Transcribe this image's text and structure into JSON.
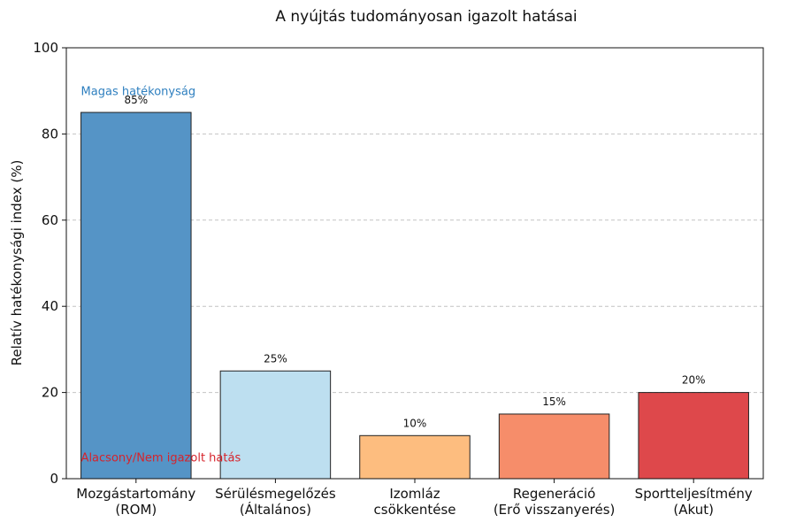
{
  "chart_data": {
    "type": "bar",
    "title": "A nyújtás tudományosan igazolt hatásai",
    "xlabel": "",
    "ylabel": "Relatív hatékonysági index (%)",
    "ylim": [
      0,
      100
    ],
    "yticks": [
      0,
      20,
      40,
      60,
      80,
      100
    ],
    "grid": "y-dashed",
    "categories": [
      [
        "Mozgástartomány",
        "(ROM)"
      ],
      [
        "Sérülésmegelőzés",
        "(Általános)"
      ],
      [
        "Izomláz",
        "csökkentése"
      ],
      [
        "Regeneráció",
        "(Erő visszanyerés)"
      ],
      [
        "Sportteljesítmény",
        "(Akut)"
      ]
    ],
    "values": [
      85,
      25,
      10,
      15,
      20
    ],
    "value_labels": [
      "85%",
      "25%",
      "10%",
      "15%",
      "20%"
    ],
    "colors": [
      "#5594c6",
      "#bddff0",
      "#fdbd7f",
      "#f68d6a",
      "#de484b"
    ],
    "annotations": [
      {
        "text": "Magas hatékonyság",
        "y": 90,
        "color": "#2e7fbf"
      },
      {
        "text": "Alacsony/Nem igazolt hatás",
        "y": 5,
        "color": "#d6232b"
      }
    ]
  }
}
